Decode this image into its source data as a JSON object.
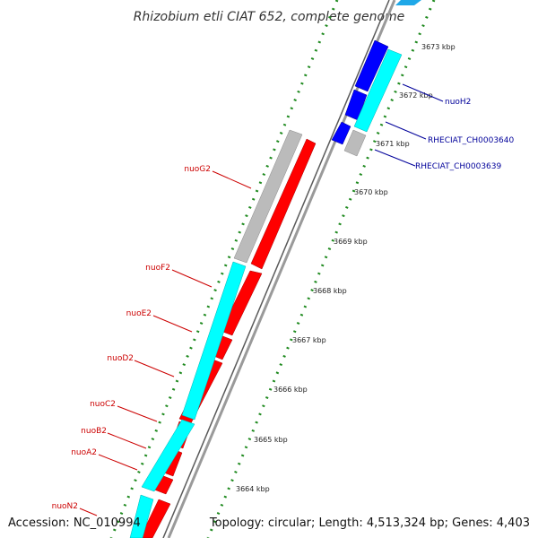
{
  "title": "Rhizobium etli CIAT 652, complete genome",
  "footer": {
    "accession": "Accession: NC_010994",
    "summary": "Topology: circular; Length: 4,513,324 bp; Genes: 4,403"
  },
  "colors": {
    "backbone": "#8a8a8a",
    "tick_marks": "#1f8a1f",
    "gene_red": "#ff0000",
    "gene_cyan": "#00ffff",
    "gene_blue": "#0000ff",
    "gene_gray": "#bbbbbb",
    "label_red": "#cc0000",
    "label_blue": "#00009a"
  },
  "ticks": [
    {
      "label": "3673 kbp"
    },
    {
      "label": "3672 kbp"
    },
    {
      "label": "3671 kbp"
    },
    {
      "label": "3670 kbp"
    },
    {
      "label": "3669 kbp"
    },
    {
      "label": "3668 kbp"
    },
    {
      "label": "3667 kbp"
    },
    {
      "label": "3666 kbp"
    },
    {
      "label": "3665 kbp"
    },
    {
      "label": "3664 kbp"
    }
  ],
  "gene_labels": [
    {
      "label": "nuoH2",
      "color": "blue"
    },
    {
      "label": "RHECIAT_CH0003640",
      "color": "blue"
    },
    {
      "label": "RHECIAT_CH0003639",
      "color": "blue"
    },
    {
      "label": "nuoG2",
      "color": "red"
    },
    {
      "label": "nuoF2",
      "color": "red"
    },
    {
      "label": "nuoE2",
      "color": "red"
    },
    {
      "label": "nuoD2",
      "color": "red"
    },
    {
      "label": "nuoC2",
      "color": "red"
    },
    {
      "label": "nuoB2",
      "color": "red"
    },
    {
      "label": "nuoA2",
      "color": "red"
    },
    {
      "label": "nuoN2",
      "color": "red"
    }
  ]
}
